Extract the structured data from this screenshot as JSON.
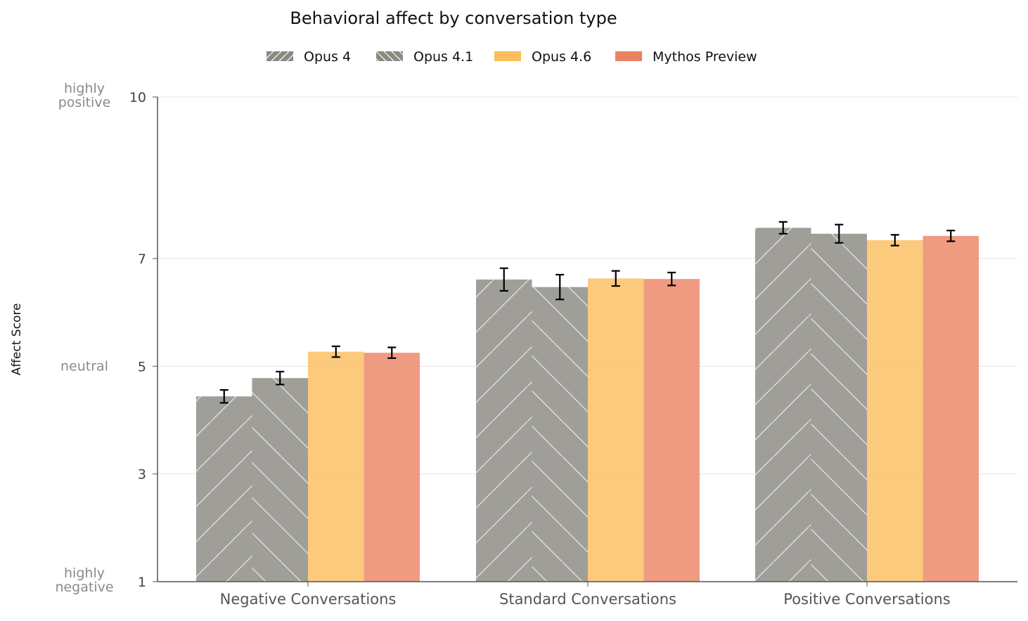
{
  "chart_data": {
    "type": "bar",
    "title": "Behavioral affect by conversation type",
    "ylabel": "Affect Score",
    "xlabel": "",
    "ylim": [
      1,
      10
    ],
    "yticks": [
      1,
      3,
      5,
      7,
      10
    ],
    "ytick_annotations": [
      {
        "value": 10,
        "label": "highly positive"
      },
      {
        "value": 5,
        "label": "neutral"
      },
      {
        "value": 1,
        "label": "highly negative"
      }
    ],
    "grid": "horizontal",
    "legend_position": "top",
    "categories": [
      "Negative Conversations",
      "Standard Conversations",
      "Positive Conversations"
    ],
    "series": [
      {
        "name": "Opus 4",
        "color": "#8b8a82",
        "pattern": "forward-hatch",
        "values": [
          4.44,
          6.61,
          7.57
        ],
        "errors": [
          0.12,
          0.21,
          0.11
        ]
      },
      {
        "name": "Opus 4.1",
        "color": "#8b8a82",
        "pattern": "back-hatch",
        "values": [
          4.78,
          6.47,
          7.46
        ],
        "errors": [
          0.12,
          0.23,
          0.17
        ]
      },
      {
        "name": "Opus 4.6",
        "color": "#fbbd5c",
        "pattern": "solid",
        "values": [
          5.27,
          6.63,
          7.34
        ],
        "errors": [
          0.1,
          0.14,
          0.1
        ]
      },
      {
        "name": "Mythos Preview",
        "color": "#eb8262",
        "pattern": "solid",
        "values": [
          5.25,
          6.62,
          7.42
        ],
        "errors": [
          0.1,
          0.12,
          0.1
        ]
      }
    ]
  }
}
